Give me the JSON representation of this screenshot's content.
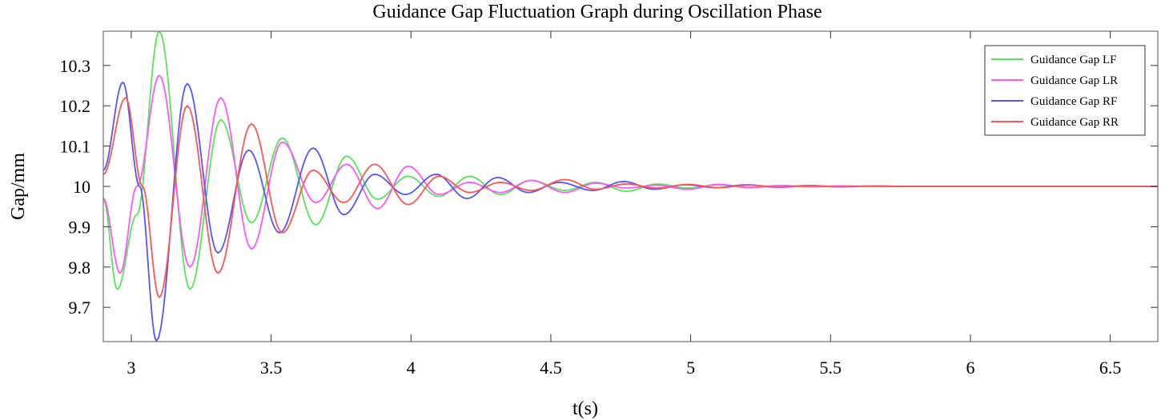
{
  "chart_data": {
    "type": "line",
    "title": "Guidance Gap Fluctuation Graph during Oscillation Phase",
    "xlabel": "t(s)",
    "ylabel": "Gap/mm",
    "xlim": [
      2.9,
      6.67
    ],
    "ylim": [
      9.615,
      10.385
    ],
    "xticks": [
      3,
      3.5,
      4,
      4.5,
      5,
      5.5,
      6,
      6.5
    ],
    "xtick_labels": [
      "3",
      "3.5",
      "4",
      "4.5",
      "5",
      "5.5",
      "6",
      "6.5"
    ],
    "yticks": [
      9.7,
      9.8,
      9.9,
      10,
      10.1,
      10.2,
      10.3
    ],
    "ytick_labels": [
      "9.7",
      "9.8",
      "9.9",
      "10",
      "10.1",
      "10.2",
      "10.3"
    ],
    "grid": false,
    "legend_position": "top-right",
    "series": [
      {
        "name": "Guidance Gap LF",
        "color": "#55e655",
        "x": [
          2.9,
          2.95,
          3.02,
          3.1,
          3.21,
          3.32,
          3.43,
          3.54,
          3.66,
          3.77,
          3.88,
          3.99,
          4.1,
          4.21,
          4.32,
          4.43,
          4.55,
          4.66,
          4.77,
          4.88,
          4.99,
          5.1,
          5.21,
          5.32,
          5.43,
          5.54,
          5.66,
          5.77,
          5.88,
          5.99,
          6.1,
          6.21,
          6.32,
          6.43,
          6.54,
          6.67
        ],
        "y": [
          9.97,
          9.745,
          9.93,
          10.385,
          9.745,
          10.165,
          9.91,
          10.12,
          9.905,
          10.075,
          9.968,
          10.025,
          9.975,
          10.025,
          9.98,
          10.015,
          9.99,
          10.01,
          9.988,
          10.006,
          9.996,
          10.004,
          9.998,
          10.002,
          9.999,
          10.001,
          10.0,
          10.0,
          10.0,
          10.0,
          10.0,
          10.0,
          10.0,
          10.0,
          10.0,
          10.0
        ]
      },
      {
        "name": "Guidance Gap LR",
        "color": "#ff55ff",
        "x": [
          2.9,
          2.96,
          3.02,
          3.1,
          3.21,
          3.32,
          3.43,
          3.54,
          3.66,
          3.77,
          3.88,
          3.99,
          4.1,
          4.21,
          4.32,
          4.43,
          4.55,
          4.66,
          4.77,
          4.88,
          4.99,
          5.1,
          5.21,
          5.32,
          5.43,
          5.54,
          5.66,
          5.77,
          5.88,
          5.99,
          6.1,
          6.21,
          6.32,
          6.43,
          6.54,
          6.67
        ],
        "y": [
          9.97,
          9.785,
          10.0,
          10.275,
          9.8,
          10.22,
          9.845,
          10.11,
          9.96,
          10.055,
          9.945,
          10.05,
          9.98,
          10.01,
          9.985,
          10.015,
          9.985,
          10.008,
          9.996,
          10.003,
          9.993,
          10.005,
          9.997,
          10.002,
          9.999,
          10.001,
          10.0,
          10.0,
          10.0,
          10.0,
          10.0,
          10.0,
          10.0,
          10.0,
          10.0,
          10.0
        ]
      },
      {
        "name": "Guidance Gap RF",
        "color": "#5555ff",
        "x": [
          2.9,
          2.97,
          3.03,
          3.09,
          3.2,
          3.31,
          3.42,
          3.53,
          3.65,
          3.76,
          3.87,
          3.98,
          4.09,
          4.2,
          4.31,
          4.42,
          4.53,
          4.65,
          4.76,
          4.87,
          4.98,
          5.09,
          5.2,
          5.31,
          5.42,
          5.53,
          5.65,
          5.76,
          5.87,
          5.98,
          6.09,
          6.2,
          6.31,
          6.42,
          6.53,
          6.67
        ],
        "y": [
          10.04,
          10.258,
          10.0,
          9.617,
          10.255,
          9.835,
          10.09,
          9.885,
          10.095,
          9.93,
          10.03,
          9.98,
          10.03,
          9.97,
          10.022,
          9.985,
          10.01,
          9.99,
          10.012,
          9.993,
          10.004,
          9.997,
          10.004,
          9.998,
          10.002,
          9.999,
          10.001,
          10.0,
          10.0,
          10.0,
          10.0,
          10.0,
          10.0,
          10.0,
          10.0,
          10.0
        ]
      },
      {
        "name": "Guidance Gap RR",
        "color": "#ff5555",
        "x": [
          2.9,
          2.98,
          3.04,
          3.1,
          3.2,
          3.31,
          3.43,
          3.54,
          3.65,
          3.76,
          3.87,
          3.99,
          4.1,
          4.21,
          4.32,
          4.43,
          4.55,
          4.66,
          4.77,
          4.88,
          4.99,
          5.1,
          5.21,
          5.32,
          5.43,
          5.54,
          5.66,
          5.77,
          5.88,
          5.99,
          6.1,
          6.21,
          6.32,
          6.43,
          6.54,
          6.67
        ],
        "y": [
          10.03,
          10.22,
          10.0,
          9.725,
          10.2,
          9.785,
          10.155,
          9.885,
          10.04,
          9.96,
          10.055,
          9.955,
          10.025,
          9.985,
          10.01,
          9.99,
          10.017,
          9.993,
          10.006,
          9.996,
          10.005,
          9.997,
          10.003,
          9.998,
          10.002,
          9.999,
          10.001,
          10.0,
          10.0,
          10.0,
          10.0,
          10.0,
          10.0,
          10.0,
          10.0,
          10.0
        ]
      }
    ]
  }
}
